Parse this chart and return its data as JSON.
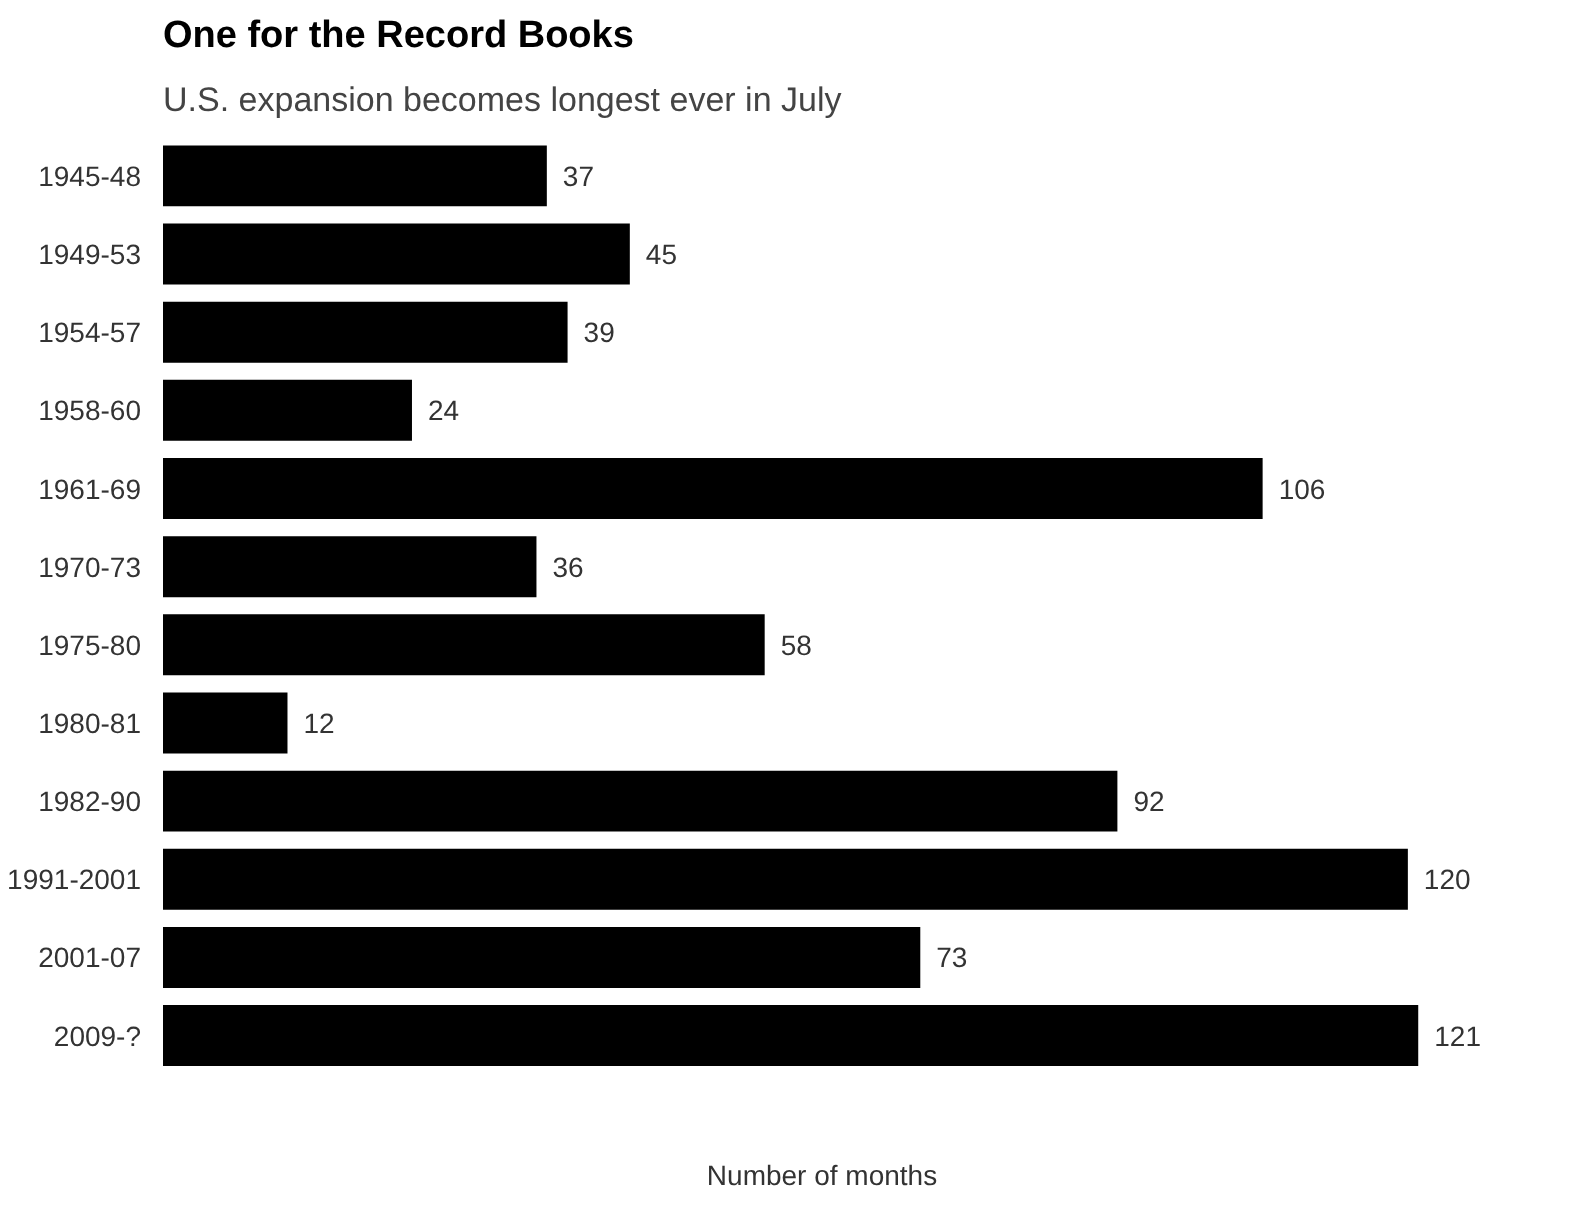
{
  "chart_data": {
    "type": "bar",
    "orientation": "horizontal",
    "title": "One for the Record Books",
    "subtitle": "U.S. expansion becomes longest ever in July",
    "xlabel": "Number of months",
    "categories": [
      "1945-48",
      "1949-53",
      "1954-57",
      "1958-60",
      "1961-69",
      "1970-73",
      "1975-80",
      "1980-81",
      "1982-90",
      "1991-2001",
      "2001-07",
      "2009-?"
    ],
    "values": [
      37,
      45,
      39,
      24,
      106,
      36,
      58,
      12,
      92,
      120,
      73,
      121
    ],
    "color": "#000000",
    "data_labels": true,
    "tick_labels": "y",
    "grid": false
  }
}
